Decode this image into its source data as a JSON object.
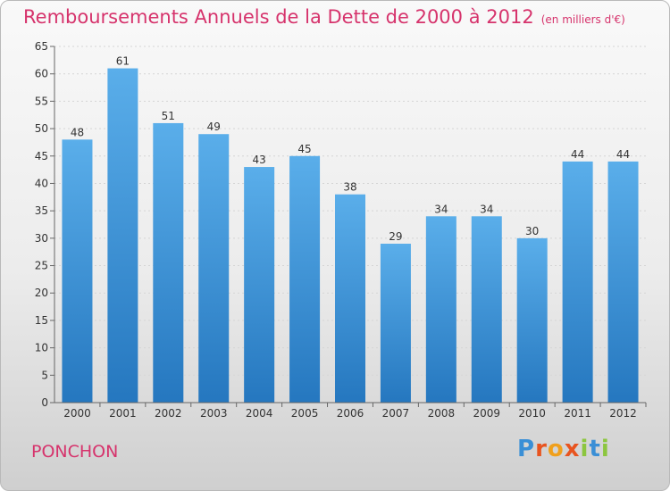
{
  "title": "Remboursements Annuels de la Dette de 2000 à 2012",
  "unit": "(en milliers d'€)",
  "commune": "PONCHON",
  "logo": {
    "letters": [
      "P",
      "r",
      "o",
      "x",
      "i",
      "t",
      "i"
    ],
    "colors": [
      "#3a8fd6",
      "#e8541f",
      "#f0a01c",
      "#e8541f",
      "#8cc63f",
      "#3a8fd6",
      "#8cc63f"
    ]
  },
  "chart_data": {
    "type": "bar",
    "categories": [
      "2000",
      "2001",
      "2002",
      "2003",
      "2004",
      "2005",
      "2006",
      "2007",
      "2008",
      "2009",
      "2010",
      "2011",
      "2012"
    ],
    "values": [
      48,
      61,
      51,
      49,
      43,
      45,
      38,
      29,
      34,
      34,
      30,
      44,
      44
    ],
    "ylim": [
      0,
      65
    ],
    "yticks": [
      0,
      5,
      10,
      15,
      20,
      25,
      30,
      35,
      40,
      45,
      50,
      55,
      60,
      65
    ],
    "grid": true,
    "bar_color_top": "#5aaeea",
    "bar_color_bottom": "#2577bf"
  }
}
